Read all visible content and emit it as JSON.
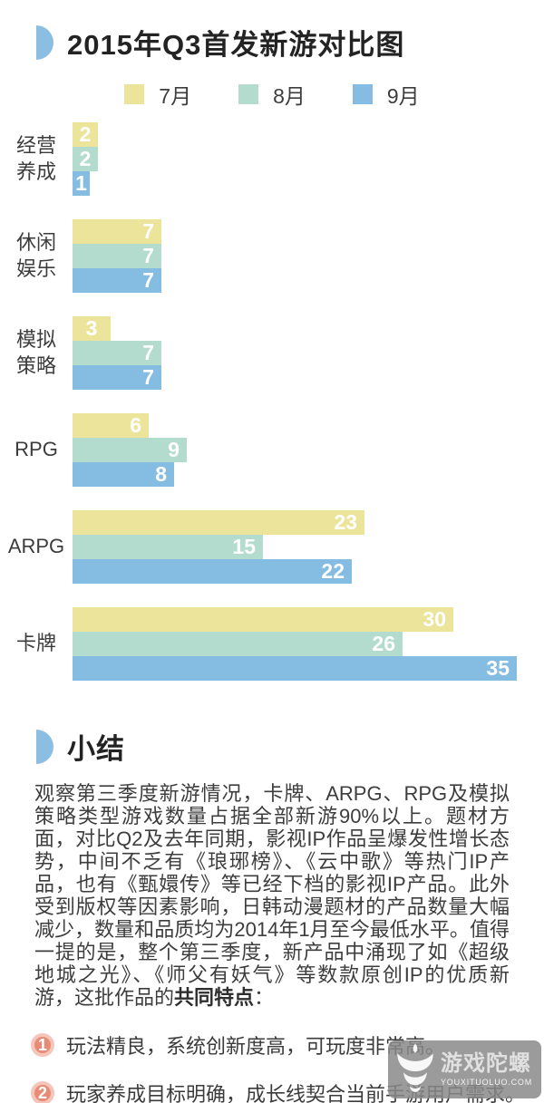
{
  "header": {
    "title": "2015年Q3首发新游对比图"
  },
  "chart_data": {
    "type": "bar",
    "orientation": "horizontal",
    "title": "2015年Q3首发新游对比图",
    "categories": [
      "经营养成",
      "休闲娱乐",
      "模拟策略",
      "RPG",
      "ARPG",
      "卡牌"
    ],
    "series": [
      {
        "name": "7月",
        "color": "#EDE49B",
        "values": [
          2,
          7,
          3,
          6,
          23,
          30
        ]
      },
      {
        "name": "8月",
        "color": "#B3DCCE",
        "values": [
          2,
          7,
          7,
          9,
          15,
          26
        ]
      },
      {
        "name": "9月",
        "color": "#85BCE1",
        "values": [
          1,
          7,
          7,
          8,
          22,
          35
        ]
      }
    ],
    "value_labels": "inside-end, white bold",
    "legend_position": "top-center",
    "xlim": [
      0,
      35
    ],
    "grid": false
  },
  "summary": {
    "heading": "小结",
    "paragraph": "观察第三季度新游情况，卡牌、ARPG、RPG及模拟策略类型游戏数量占据全部新游90%以上。题材方面，对比Q2及去年同期，影视IP作品呈爆发性增长态势，中间不乏有《琅琊榜》、《云中歌》等热门IP产品，也有《甄嬛传》等已经下档的影视IP产品。此外受到版权等因素影响，日韩动漫题材的产品数量大幅减少，数量和品质均为2014年1月至今最低水平。值得一提的是，整个第三季度，新产品中涌现了如《超级地城之光》、《师父有妖气》等数款原创IP的优质新游，这批作品的",
    "paragraph_bold": "共同特点",
    "paragraph_tail": "：",
    "points": [
      {
        "num": "1",
        "text": "玩法精良，系统创新度高，可玩度非常高。"
      },
      {
        "num": "2",
        "text": "玩家养成目标明确，成长线契合当前手游用户需求。"
      }
    ]
  },
  "watermark": {
    "name": "游戏陀螺",
    "site": "YOUXITUOLUO.COM"
  },
  "colors": {
    "accent_blue": "#8CBEE2",
    "bar_july": "#EDE49B",
    "bar_august": "#B3DCCE",
    "bar_september": "#85BCE1",
    "point_circle": "#E78B77",
    "point_ring": "#F4C5B8",
    "text": "#3D3D3D"
  }
}
